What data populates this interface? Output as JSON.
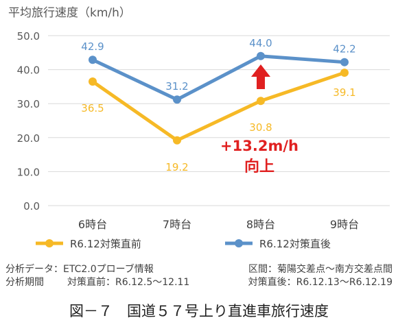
{
  "chart_data": {
    "type": "line",
    "ylabel": "平均旅行速度（km/h）",
    "categories": [
      "6時台",
      "7時台",
      "8時台",
      "9時台"
    ],
    "yticks": [
      "0.0",
      "10.0",
      "20.0",
      "30.0",
      "40.0",
      "50.0"
    ],
    "ylim": [
      0,
      50
    ],
    "grid": true,
    "legend_position": "bottom",
    "series": [
      {
        "name": "R6.12対策直前",
        "color": "#f6b926",
        "values": [
          36.5,
          19.2,
          30.8,
          39.1
        ],
        "labels": [
          "36.5",
          "19.2",
          "30.8",
          "39.1"
        ]
      },
      {
        "name": "R6.12対策直後",
        "color": "#5b91c9",
        "values": [
          42.9,
          31.2,
          44.0,
          42.2
        ],
        "labels": [
          "42.9",
          "31.2",
          "44.0",
          "42.2"
        ]
      }
    ],
    "annotation": {
      "line1": "+13.2m/h",
      "line2": "向上",
      "color": "#e02020"
    }
  },
  "notes": {
    "line1_left": "分析データ：ETC2.0プローブ情報",
    "line1_right": "区間：菊陽交差点～南方交差点間",
    "line2_left": "分析期間",
    "line2_mid": "対策直前：R6.12.5～12.11",
    "line2_right": "対策直後：R6.12.13～R6.12.19"
  },
  "caption": "図－７　国道５７号上り直進車旅行速度"
}
